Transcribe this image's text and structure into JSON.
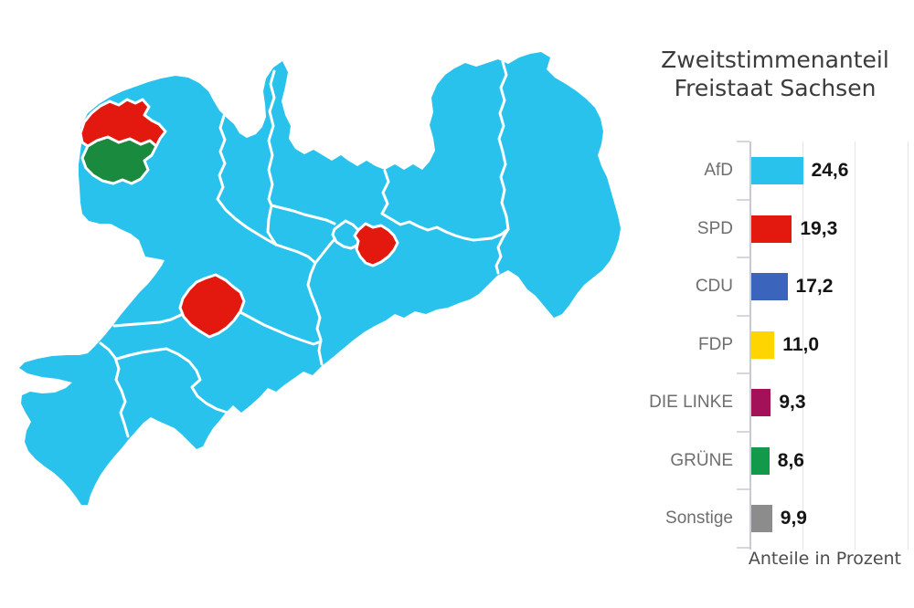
{
  "title": {
    "line1": "Zweitstimmenanteil",
    "line2": "Freistaat Sachsen"
  },
  "footer": "Anteile in Prozent",
  "colors": {
    "afd": "#29c2ec",
    "spd": "#e3180e",
    "cdu": "#3b64bd",
    "fdp": "#ffd500",
    "linke": "#a31258",
    "gruene": "#129a4a",
    "sonstige": "#8c8c8c",
    "map_base": "#29c2ec",
    "map_spd": "#e3180e",
    "map_gruene": "#1a8a3e",
    "border_white": "#ffffff"
  },
  "chart_data": {
    "type": "bar",
    "orientation": "horizontal",
    "title": "Zweitstimmenanteil Freistaat Sachsen",
    "categories": [
      "AfD",
      "SPD",
      "CDU",
      "FDP",
      "DIE LINKE",
      "GRÜNE",
      "Sonstige"
    ],
    "values": [
      24.6,
      19.3,
      17.2,
      11.0,
      9.3,
      8.6,
      9.9
    ],
    "display_values": [
      "24,6",
      "19,3",
      "17,2",
      "11,0",
      "9,3",
      "8,6",
      "9,9"
    ],
    "color_keys": [
      "afd",
      "spd",
      "cdu",
      "fdp",
      "linke",
      "gruene",
      "sonstige"
    ],
    "xlabel": "Anteile in Prozent",
    "xlim": [
      0,
      75
    ],
    "gridlines": [
      25,
      50,
      75
    ],
    "legend_position": "right-of-map"
  },
  "map": {
    "description": "Choropleth of Freistaat Sachsen constituencies",
    "base_fill_party": "AfD",
    "highlighted_regions": [
      {
        "location": "northwest-upper",
        "party": "SPD"
      },
      {
        "location": "northwest-lower",
        "party": "GRÜNE"
      },
      {
        "location": "center",
        "party": "SPD"
      },
      {
        "location": "center-east",
        "party": "SPD"
      }
    ]
  }
}
